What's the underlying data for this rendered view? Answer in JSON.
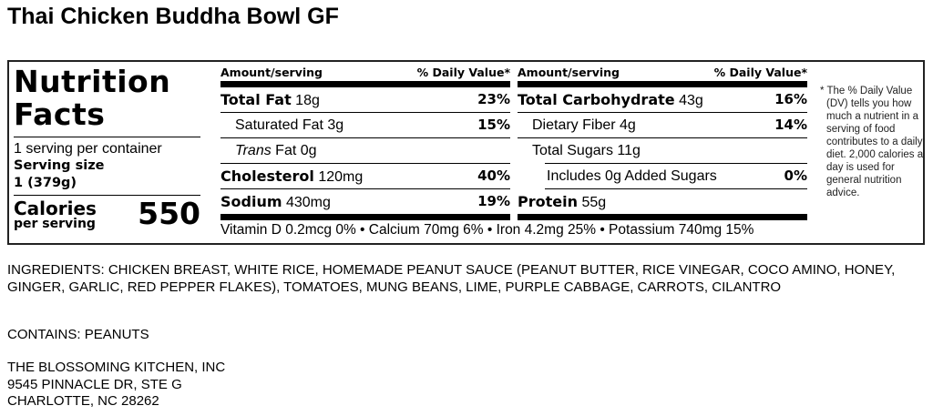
{
  "title": "Thai Chicken Buddha Bowl GF",
  "label": {
    "heading_line1": "Nutrition",
    "heading_line2": "Facts",
    "servings": "1 serving per container",
    "serving_size_label": "Serving size",
    "serving_size_value": "1 (379g)",
    "calories_label": "Calories",
    "calories_sub": "per serving",
    "calories": "550",
    "header_amount": "Amount/serving",
    "header_dv": "% Daily Value*",
    "left_rows": [
      {
        "name": "Total Fat",
        "amount": "18g",
        "dv": "23%"
      },
      {
        "name": "Saturated Fat",
        "amount": "3g",
        "dv": "15%"
      },
      {
        "name": "Trans",
        "name_rest": "Fat 0g",
        "dv": ""
      },
      {
        "name": "Cholesterol",
        "amount": "120mg",
        "dv": "40%"
      },
      {
        "name": "Sodium",
        "amount": "430mg",
        "dv": "19%"
      }
    ],
    "right_rows": [
      {
        "name": "Total Carbohydrate",
        "amount": "43g",
        "dv": "16%"
      },
      {
        "name": "Dietary Fiber",
        "amount": "4g",
        "dv": "14%"
      },
      {
        "name": "Total Sugars",
        "amount": "11g",
        "dv": ""
      },
      {
        "name": "Includes 0g Added Sugars",
        "dv": "0%"
      },
      {
        "name": "Protein",
        "amount": "55g",
        "dv": ""
      }
    ],
    "vitamins": "Vitamin D 0.2mcg 0% • Calcium 70mg 6% • Iron 4.2mg 25% • Potassium 740mg 15%",
    "footnote_star": "* The % Daily Value",
    "footnote_rest": "(DV) tells you how much a nutrient in a serving of food contributes to a daily diet. 2,000 calories a day is used for general nutrition advice."
  },
  "ingredients": "INGREDIENTS: CHICKEN BREAST, WHITE RICE, HOMEMADE PEANUT SAUCE (PEANUT BUTTER, RICE VINEGAR, COCO AMINO, HONEY, GINGER, GARLIC, RED PEPPER FLAKES), TOMATOES, MUNG BEANS, LIME, PURPLE CABBAGE, CARROTS, CILANTRO",
  "contains": "CONTAINS: PEANUTS",
  "address": [
    "THE BLOSSOMING KITCHEN, INC",
    "9545 PINNACLE DR, STE G",
    "CHARLOTTE, NC 28262"
  ]
}
